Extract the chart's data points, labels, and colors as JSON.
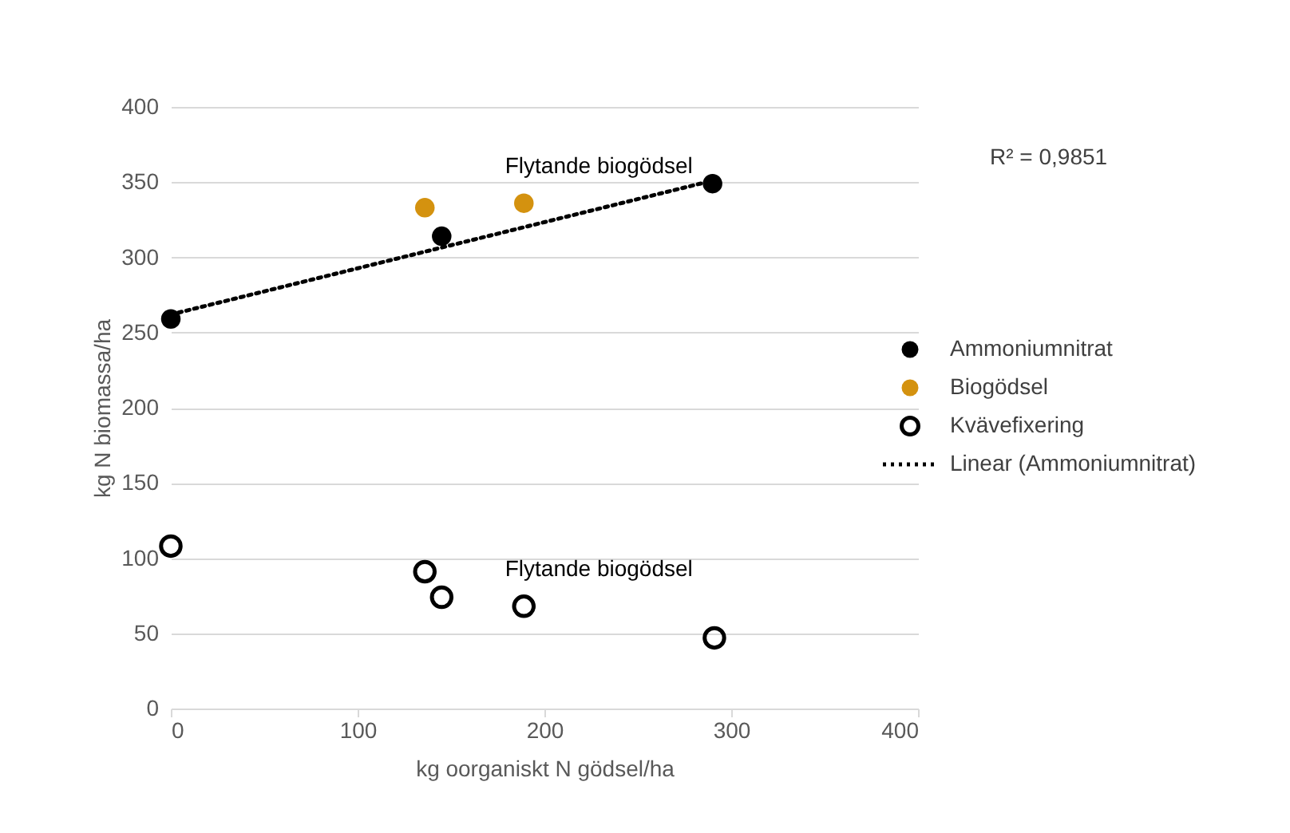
{
  "chart_data": {
    "type": "scatter",
    "xlabel": "kg oorganiskt N gödsel/ha",
    "ylabel": "kg N biomassa/ha",
    "xlim": [
      0,
      400
    ],
    "xticks": [
      0,
      100,
      200,
      300,
      400
    ],
    "ylim": [
      0,
      400
    ],
    "yticks": [
      0,
      50,
      100,
      150,
      200,
      250,
      300,
      350,
      400
    ],
    "grid": "y",
    "legend": "right",
    "series": [
      {
        "name": "Ammoniumnitrat",
        "color": "#000000",
        "marker": "circle",
        "x": [
          0,
          145,
          290
        ],
        "values": [
          259,
          314,
          349
        ]
      },
      {
        "name": "Biogödsel",
        "color": "#d4920f",
        "marker": "circle",
        "x": [
          136,
          189
        ],
        "values": [
          333,
          336
        ]
      },
      {
        "name": "Kvävefixering",
        "color": "#000000",
        "marker": "circle",
        "x": [
          0,
          136,
          145,
          189,
          291
        ],
        "values": [
          108,
          91,
          74,
          68,
          47
        ]
      },
      {
        "name": "Linear (Ammoniumnitrat)",
        "color": "#000000",
        "type": "line",
        "marker": "none",
        "line_style": "dotted",
        "x": [
          0,
          290
        ],
        "values": [
          262,
          351
        ]
      }
    ],
    "annotations": [
      {
        "text": "Flytande biogödsel",
        "x": 189,
        "y": 336
      },
      {
        "text": "Flytande biogödsel",
        "x": 189,
        "y": 68
      },
      "R² = 0,9851"
    ]
  }
}
